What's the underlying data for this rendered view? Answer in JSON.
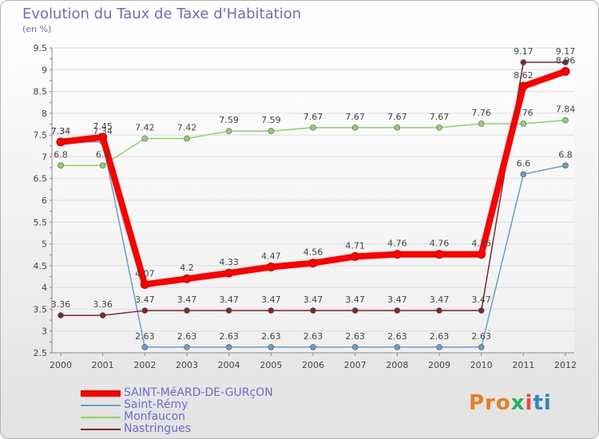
{
  "header": {
    "title": "Evolution du Taux de Taxe d'Habitation",
    "subtitle": "(en %)"
  },
  "chart_data": {
    "type": "line",
    "title": "Evolution du Taux de Taxe d'Habitation",
    "ylabel": "(en %)",
    "xlabel": "",
    "categories": [
      "2000",
      "2001",
      "2002",
      "2003",
      "2004",
      "2005",
      "2006",
      "2007",
      "2008",
      "2009",
      "2010",
      "2011",
      "2012"
    ],
    "ylim": [
      2.5,
      9.5
    ],
    "yticks": [
      2.5,
      3,
      3.5,
      4,
      4.5,
      5,
      5.5,
      6,
      6.5,
      7,
      7.5,
      8,
      8.5,
      9,
      9.5
    ],
    "ytick_labels": [
      "2.5",
      "3",
      "3.5",
      "4",
      "4.5",
      "5",
      "5.5",
      "6",
      "6.5",
      "7",
      "7.5",
      "8",
      "8.5",
      "9",
      "9.5"
    ],
    "grid": "horizontal",
    "legend_position": "bottom-left",
    "series": [
      {
        "name": "SAINT-MéARD-DE-GURçON",
        "color": "#ff0000",
        "values": [
          7.34,
          7.45,
          4.07,
          4.2,
          4.33,
          4.47,
          4.56,
          4.71,
          4.76,
          4.76,
          4.76,
          8.62,
          8.96
        ],
        "labels": [
          "7.34",
          "7.45",
          "4.07",
          "4.2",
          "4.33",
          "4.47",
          "4.56",
          "4.71",
          "4.76",
          "4.76",
          "4.76",
          "8.62",
          "8.96"
        ]
      },
      {
        "name": "Saint-Rémy",
        "color": "#6a9ec9",
        "values": [
          7.34,
          7.34,
          2.63,
          2.63,
          2.63,
          2.63,
          2.63,
          2.63,
          2.63,
          2.63,
          2.63,
          6.6,
          6.8
        ],
        "labels": [
          "7.34",
          "7.34",
          "2.63",
          "2.63",
          "2.63",
          "2.63",
          "2.63",
          "2.63",
          "2.63",
          "2.63",
          "2.63",
          "6.6",
          "6.8"
        ]
      },
      {
        "name": "Monfaucon",
        "color": "#8fd16a",
        "values": [
          6.8,
          6.8,
          7.42,
          7.42,
          7.59,
          7.59,
          7.67,
          7.67,
          7.67,
          7.67,
          7.76,
          7.76,
          7.84
        ],
        "labels": [
          "6.8",
          "6.8",
          "7.42",
          "7.42",
          "7.59",
          "7.59",
          "7.67",
          "7.67",
          "7.67",
          "7.67",
          "7.76",
          "7.76",
          "7.84"
        ]
      },
      {
        "name": "Nastringues",
        "color": "#7a2a2a",
        "values": [
          3.36,
          3.36,
          3.47,
          3.47,
          3.47,
          3.47,
          3.47,
          3.47,
          3.47,
          3.47,
          3.47,
          9.17,
          9.17
        ],
        "labels": [
          "3.36",
          "3.36",
          "3.47",
          "3.47",
          "3.47",
          "3.47",
          "3.47",
          "3.47",
          "3.47",
          "3.47",
          "3.47",
          "9.17",
          "9.17"
        ]
      }
    ]
  },
  "logo": {
    "part1": "Pro",
    "part2": "x",
    "part3": "i",
    "part4": "ti"
  }
}
